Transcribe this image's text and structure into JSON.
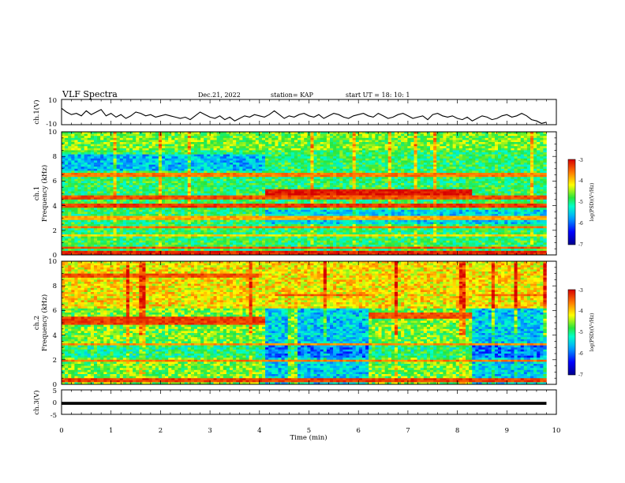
{
  "header": {
    "title": "VLF Spectra",
    "date": "Dec.21, 2022",
    "station": "station= KAP",
    "start": "start  UT =   18: 10: 1"
  },
  "chart_data": [
    {
      "type": "line",
      "name": "ch1_waveform",
      "ylabel": "ch.1(V)",
      "ylim": [
        -10,
        10
      ],
      "yticks": [
        "10",
        "-10"
      ],
      "xlim": [
        0,
        10
      ],
      "x_step_min": 0.1,
      "values": [
        3,
        0,
        -2,
        -1,
        -3,
        1,
        -2,
        0,
        2,
        -3,
        -1,
        -4,
        -2,
        -5,
        -3,
        0,
        -1,
        -3,
        -2,
        -4,
        -3,
        -2,
        -3,
        -4,
        -5,
        -4,
        -6,
        -3,
        0,
        -2,
        -4,
        -5,
        -3,
        -6,
        -4,
        -7,
        -5,
        -3,
        -4,
        -2,
        -3,
        -4,
        -2,
        1,
        -2,
        -5,
        -3,
        -4,
        -2,
        -1,
        -3,
        -4,
        -2,
        -5,
        -3,
        -1,
        -2,
        -4,
        -5,
        -3,
        -2,
        -1,
        -3,
        -4,
        -1,
        -3,
        -5,
        -4,
        -2,
        -1,
        -3,
        -5,
        -4,
        -3,
        -6,
        -2,
        -1,
        -3,
        -4,
        -3,
        -5,
        -6,
        -4,
        -7,
        -5,
        -3,
        -4,
        -6,
        -5,
        -3,
        -2,
        -4,
        -3,
        -1,
        -3,
        -6,
        -7,
        -9,
        -8
      ]
    },
    {
      "type": "heatmap",
      "name": "ch1_spectrogram",
      "ylabel": "Frequency (kHz)",
      "channel": "ch.1",
      "ylim": [
        0,
        10
      ],
      "yticks": [
        "0",
        "2",
        "4",
        "6",
        "8",
        "10"
      ],
      "xlim": [
        0,
        10
      ],
      "colorbar": {
        "label": "log(PSD)(V²/Hz)",
        "range": [
          -7,
          -3
        ],
        "ticks": [
          "-3",
          "-4",
          "-5",
          "-6",
          "-7"
        ]
      },
      "segments": [
        0,
        4.1,
        6.2,
        8.3,
        9.8
      ],
      "features": [
        {
          "f": 0.2,
          "w": 0.12,
          "v": -3.2,
          "from": 0,
          "to": 9.8
        },
        {
          "f": 0.6,
          "w": 0.08,
          "v": -3.4,
          "from": 0,
          "to": 9.8
        },
        {
          "f": 1.6,
          "w": 0.1,
          "v": -4.0,
          "from": 0,
          "to": 9.8
        },
        {
          "f": 2.2,
          "w": 0.08,
          "v": -3.6,
          "from": 0,
          "to": 9.8
        },
        {
          "f": 3.0,
          "w": 0.1,
          "v": -3.8,
          "from": 0,
          "to": 9.8
        },
        {
          "f": 3.5,
          "w": 0.08,
          "v": -3.5,
          "from": 0,
          "to": 9.8
        },
        {
          "f": 4.0,
          "w": 0.12,
          "v": -3.3,
          "from": 0,
          "to": 9.8
        },
        {
          "f": 4.7,
          "w": 0.15,
          "v": -3.4,
          "from": 0,
          "to": 9.8
        },
        {
          "f": 5.1,
          "w": 0.2,
          "v": -3.1,
          "from": 4.1,
          "to": 8.3
        },
        {
          "f": 6.5,
          "w": 0.1,
          "v": -3.6,
          "from": 0,
          "to": 9.8
        },
        {
          "f": 7.2,
          "w": 0.3,
          "v": -6.2,
          "from": 0,
          "to": 4.1
        }
      ]
    },
    {
      "type": "heatmap",
      "name": "ch2_spectrogram",
      "ylabel": "Frequency (kHz)",
      "channel": "ch.2",
      "ylim": [
        0,
        10
      ],
      "yticks": [
        "0",
        "2",
        "4",
        "6",
        "8",
        "10"
      ],
      "xlim": [
        0,
        10
      ],
      "colorbar": {
        "label": "log(PSD)(V²/Hz)",
        "range": [
          -7,
          -3
        ],
        "ticks": [
          "-3",
          "-4",
          "-5",
          "-6",
          "-7"
        ]
      },
      "quiet_intervals": [
        [
          4.1,
          4.6
        ],
        [
          4.8,
          6.2
        ],
        [
          8.3,
          9.8
        ]
      ],
      "features": [
        {
          "f": 0.3,
          "w": 0.12,
          "v": -3.3,
          "from": 0,
          "to": 9.8
        },
        {
          "f": 1.9,
          "w": 0.1,
          "v": -3.6,
          "from": 0,
          "to": 9.8
        },
        {
          "f": 3.3,
          "w": 0.1,
          "v": -3.7,
          "from": 0,
          "to": 9.8
        },
        {
          "f": 5.2,
          "w": 0.3,
          "v": -3.3,
          "from": 0,
          "to": 4.1
        },
        {
          "f": 5.6,
          "w": 0.25,
          "v": -3.4,
          "from": 6.2,
          "to": 8.3
        },
        {
          "f": 7.3,
          "w": 0.1,
          "v": -3.5,
          "from": 4.3,
          "to": 6.2
        },
        {
          "f": 7.3,
          "w": 0.1,
          "v": -3.5,
          "from": 8.4,
          "to": 9.8
        },
        {
          "f": 8.8,
          "w": 0.15,
          "v": -3.4,
          "from": 0,
          "to": 4.0
        }
      ]
    },
    {
      "type": "line",
      "name": "ch3_waveform",
      "ylabel": "ch.3(V)",
      "ylim": [
        -5,
        5
      ],
      "yticks": [
        "5",
        "0",
        "-5"
      ],
      "xlim": [
        0,
        10
      ],
      "level": -0.5,
      "level_thickness": 1.2,
      "x_end": 9.8
    }
  ],
  "xaxis": {
    "label": "Time  (min)",
    "ticks": [
      "0",
      "1",
      "2",
      "3",
      "4",
      "5",
      "6",
      "7",
      "8",
      "9",
      "10"
    ]
  },
  "colors": {
    "line": "#000000",
    "frame": "#000000"
  }
}
